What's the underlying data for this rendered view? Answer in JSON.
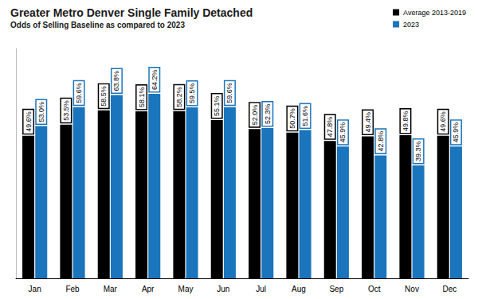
{
  "chart_data": {
    "type": "bar",
    "title": "Greater Metro Denver Single Family Detached",
    "subtitle": "Odds of Selling Baseline as compared to 2023",
    "categories": [
      "Jan",
      "Feb",
      "Mar",
      "Apr",
      "May",
      "Jun",
      "Jul",
      "Aug",
      "Sep",
      "Oct",
      "Nov",
      "Dec"
    ],
    "series": [
      {
        "name": "Average 2013-2019",
        "color": "#000000",
        "values": [
          49.6,
          53.5,
          58.5,
          58.1,
          58.2,
          55.1,
          52.0,
          50.7,
          47.8,
          49.4,
          49.8,
          49.6
        ],
        "value_labels": [
          "49.6%",
          "53.5%",
          "58.5%",
          "58.1%",
          "58.2%",
          "55.1%",
          "52.0%",
          "50.7%",
          "47.8%",
          "49.4%",
          "49.8%",
          "49.6%"
        ]
      },
      {
        "name": "2023",
        "color": "#1b75bc",
        "values": [
          53.0,
          59.6,
          63.8,
          64.2,
          59.5,
          59.6,
          52.3,
          51.6,
          45.9,
          42.8,
          39.3,
          45.9
        ],
        "value_labels": [
          "53.0%",
          "59.6%",
          "63.8%",
          "64.2%",
          "59.5%",
          "59.6%",
          "52.3%",
          "51.6%",
          "45.9%",
          "42.8%",
          "39.3%",
          "45.9%"
        ]
      }
    ],
    "ylim": [
      0,
      80
    ],
    "grid": false,
    "legend": "top-right",
    "data_labels": true,
    "tick_labels": "x"
  }
}
